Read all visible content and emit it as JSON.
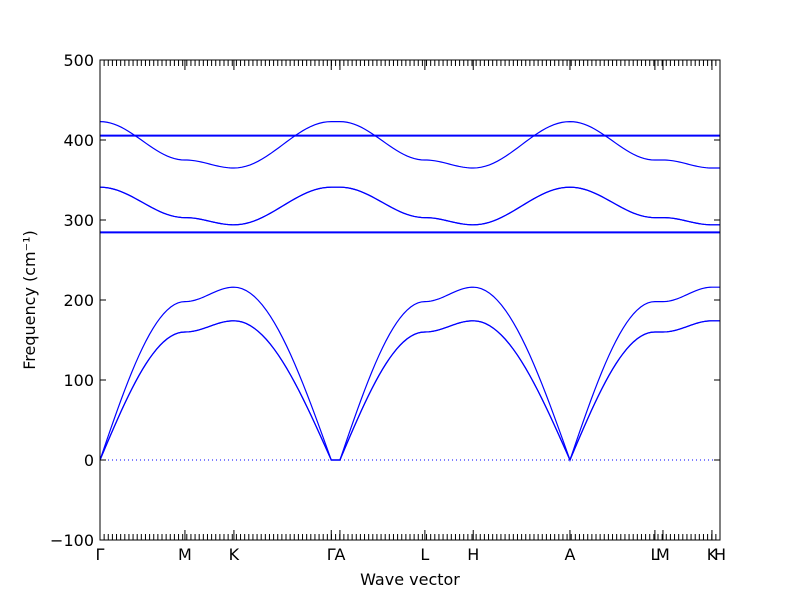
{
  "chart_data": {
    "type": "line",
    "title": "",
    "xlabel": "Wave vector",
    "ylabel": "Frequency (cm⁻¹)",
    "ylim": [
      -100,
      500
    ],
    "yticks": [
      -100,
      0,
      100,
      200,
      300,
      400,
      500
    ],
    "xlim": [
      0,
      1
    ],
    "high_symmetry_points": [
      {
        "label": "Γ",
        "x": 0.0
      },
      {
        "label": "M",
        "x": 0.137
      },
      {
        "label": "K",
        "x": 0.216
      },
      {
        "label": "Γ",
        "x": 0.373
      },
      {
        "label": "A",
        "x": 0.387
      },
      {
        "label": "L",
        "x": 0.524
      },
      {
        "label": "H",
        "x": 0.602
      },
      {
        "label": "A",
        "x": 0.758
      },
      {
        "label": "L",
        "x": 0.895
      },
      {
        "label": "M",
        "x": 0.908
      },
      {
        "label": "K",
        "x": 0.987
      },
      {
        "label": "H",
        "x": 1.0
      }
    ],
    "reference_line": {
      "y": 0,
      "style": "dotted"
    },
    "series": [
      {
        "values": [
          [
            0,
            0
          ],
          [
            0.137,
            160
          ],
          [
            0.216,
            174
          ],
          [
            0.373,
            0
          ],
          [
            0.387,
            0
          ],
          [
            0.524,
            160
          ],
          [
            0.602,
            174
          ],
          [
            0.758,
            0
          ],
          [
            0.895,
            160
          ],
          [
            0.908,
            160
          ],
          [
            0.987,
            174
          ],
          [
            1.0,
            174
          ]
        ]
      },
      {
        "values": [
          [
            0,
            0
          ],
          [
            0.137,
            160
          ],
          [
            0.216,
            174
          ],
          [
            0.373,
            0
          ],
          [
            0.387,
            0
          ],
          [
            0.524,
            160
          ],
          [
            0.602,
            174
          ],
          [
            0.758,
            0
          ],
          [
            0.895,
            160
          ],
          [
            0.908,
            160
          ],
          [
            0.987,
            174
          ],
          [
            1.0,
            174
          ]
        ]
      },
      {
        "values": [
          [
            0,
            0
          ],
          [
            0.137,
            198
          ],
          [
            0.216,
            216
          ],
          [
            0.373,
            0
          ],
          [
            0.387,
            0
          ],
          [
            0.524,
            198
          ],
          [
            0.602,
            216
          ],
          [
            0.758,
            0
          ],
          [
            0.895,
            198
          ],
          [
            0.908,
            198
          ],
          [
            0.987,
            216
          ],
          [
            1.0,
            216
          ]
        ]
      },
      {
        "values": [
          [
            0,
            284
          ],
          [
            1.0,
            284
          ]
        ]
      },
      {
        "values": [
          [
            0,
            285
          ],
          [
            1.0,
            285
          ]
        ]
      },
      {
        "values": [
          [
            0,
            341
          ],
          [
            0.137,
            303
          ],
          [
            0.216,
            294
          ],
          [
            0.373,
            341
          ],
          [
            0.387,
            341
          ],
          [
            0.524,
            303
          ],
          [
            0.602,
            294
          ],
          [
            0.758,
            341
          ],
          [
            0.895,
            303
          ],
          [
            0.908,
            303
          ],
          [
            0.987,
            294
          ],
          [
            1.0,
            294
          ]
        ]
      },
      {
        "values": [
          [
            0,
            341
          ],
          [
            0.137,
            303
          ],
          [
            0.216,
            294
          ],
          [
            0.373,
            341
          ],
          [
            0.387,
            341
          ],
          [
            0.524,
            303
          ],
          [
            0.602,
            294
          ],
          [
            0.758,
            341
          ],
          [
            0.895,
            303
          ],
          [
            0.908,
            303
          ],
          [
            0.987,
            294
          ],
          [
            1.0,
            294
          ]
        ]
      },
      {
        "values": [
          [
            0,
            405
          ],
          [
            1.0,
            405
          ]
        ]
      },
      {
        "values": [
          [
            0,
            406
          ],
          [
            1.0,
            406
          ]
        ]
      },
      {
        "values": [
          [
            0,
            423
          ],
          [
            0.137,
            375
          ],
          [
            0.216,
            365
          ],
          [
            0.373,
            423
          ],
          [
            0.387,
            423
          ],
          [
            0.524,
            375
          ],
          [
            0.602,
            365
          ],
          [
            0.758,
            423
          ],
          [
            0.895,
            375
          ],
          [
            0.908,
            375
          ],
          [
            0.987,
            365
          ],
          [
            1.0,
            365
          ]
        ]
      }
    ]
  }
}
